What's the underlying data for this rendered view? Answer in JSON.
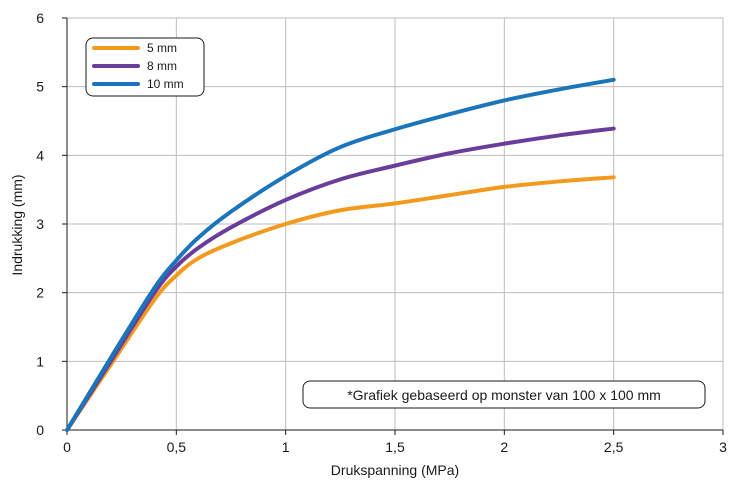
{
  "chart_data": {
    "type": "line",
    "xlabel": "Drukspanning (MPa)",
    "ylabel": "Indrukking (mm)",
    "xlim": [
      0,
      3
    ],
    "ylim": [
      0,
      6
    ],
    "x_ticks": [
      0,
      0.5,
      1,
      1.5,
      2,
      2.5,
      3
    ],
    "x_tick_labels": [
      "0",
      "0,5",
      "1",
      "1,5",
      "2",
      "2,5",
      "3"
    ],
    "y_ticks": [
      0,
      1,
      2,
      3,
      4,
      5,
      6
    ],
    "y_tick_labels": [
      "0",
      "1",
      "2",
      "3",
      "4",
      "5",
      "6"
    ],
    "grid": true,
    "legend_position": "top-left",
    "annotation": "*Grafiek gebaseerd op monster van 100 x 100 mm",
    "series": [
      {
        "name": "5 mm",
        "color": "#f39a1e",
        "points": [
          [
            0,
            0
          ],
          [
            0.2,
            0.95
          ],
          [
            0.4,
            1.9
          ],
          [
            0.5,
            2.25
          ],
          [
            0.6,
            2.5
          ],
          [
            0.75,
            2.72
          ],
          [
            1.0,
            3.0
          ],
          [
            1.25,
            3.2
          ],
          [
            1.5,
            3.3
          ],
          [
            1.75,
            3.42
          ],
          [
            2.0,
            3.54
          ],
          [
            2.25,
            3.62
          ],
          [
            2.5,
            3.68
          ]
        ]
      },
      {
        "name": "8 mm",
        "color": "#6a3d9a",
        "points": [
          [
            0,
            0
          ],
          [
            0.2,
            1.0
          ],
          [
            0.4,
            2.0
          ],
          [
            0.5,
            2.38
          ],
          [
            0.6,
            2.65
          ],
          [
            0.75,
            2.95
          ],
          [
            1.0,
            3.35
          ],
          [
            1.25,
            3.65
          ],
          [
            1.5,
            3.85
          ],
          [
            1.75,
            4.03
          ],
          [
            2.0,
            4.17
          ],
          [
            2.25,
            4.29
          ],
          [
            2.5,
            4.39
          ]
        ]
      },
      {
        "name": "10 mm",
        "color": "#1b75bb",
        "points": [
          [
            0,
            0
          ],
          [
            0.2,
            1.05
          ],
          [
            0.4,
            2.07
          ],
          [
            0.5,
            2.47
          ],
          [
            0.6,
            2.8
          ],
          [
            0.75,
            3.18
          ],
          [
            1.0,
            3.7
          ],
          [
            1.25,
            4.12
          ],
          [
            1.5,
            4.38
          ],
          [
            1.75,
            4.6
          ],
          [
            2.0,
            4.8
          ],
          [
            2.25,
            4.96
          ],
          [
            2.5,
            5.1
          ]
        ]
      }
    ]
  }
}
